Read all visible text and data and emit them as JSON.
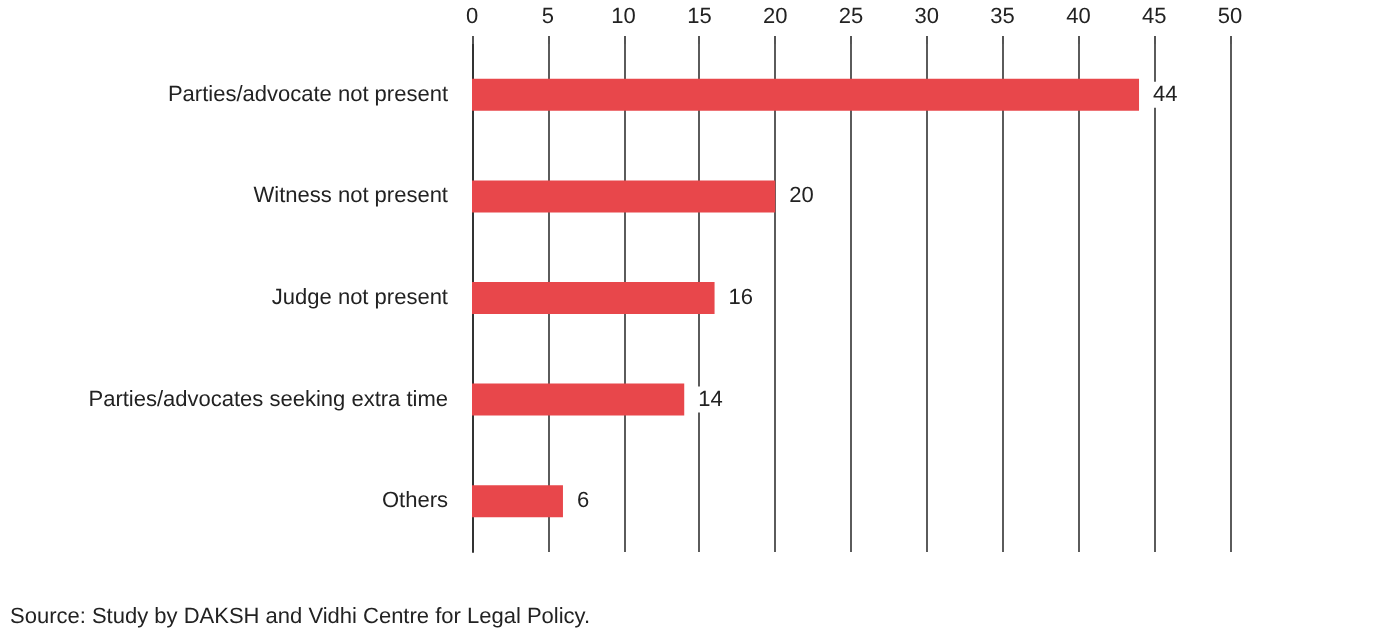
{
  "chart_data": {
    "type": "bar",
    "orientation": "horizontal",
    "categories": [
      "Parties/advocate not present",
      "Witness not present",
      "Judge not present",
      "Parties/advocates seeking extra time",
      "Others"
    ],
    "values": [
      44,
      20,
      16,
      14,
      6
    ],
    "color": "#e8474b",
    "data_labels": true,
    "xlim": [
      0,
      50
    ],
    "xticks": [
      0,
      5,
      10,
      15,
      20,
      25,
      30,
      35,
      40,
      45,
      50
    ],
    "grid": "x",
    "annotations": [
      "Source: Study by DAKSH and Vidhi Centre for Legal Policy."
    ]
  }
}
